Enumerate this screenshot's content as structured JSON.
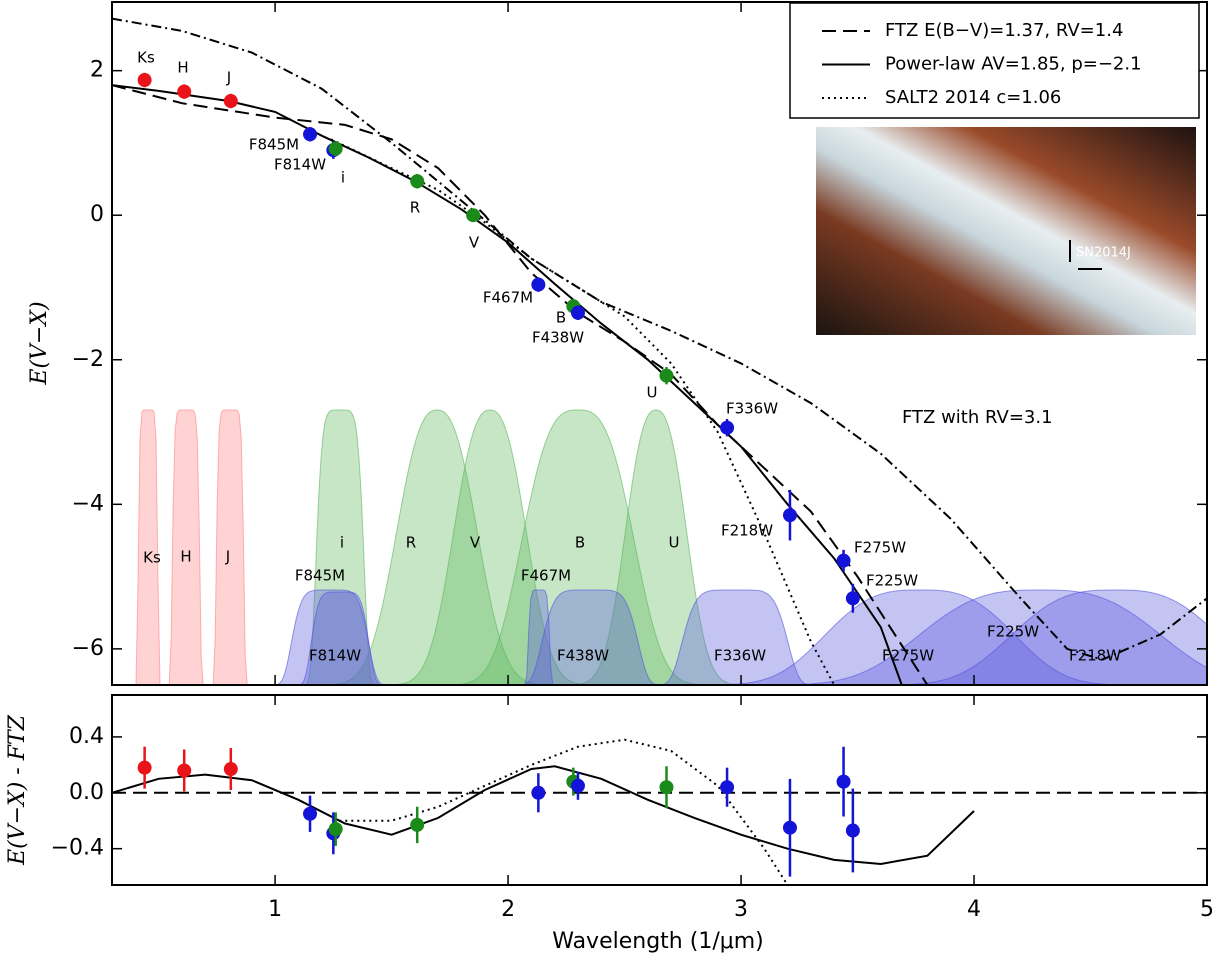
{
  "chart_data": [
    {
      "type": "scatter",
      "ylabel": "E(V−X)",
      "xlim": [
        0.3,
        5
      ],
      "xticks": [
        1,
        2,
        3,
        4,
        5
      ],
      "ylim": [
        -6.5,
        2.95
      ],
      "yticks": [
        {
          "value": -6,
          "label": "−6"
        },
        {
          "value": -4,
          "label": "−4"
        },
        {
          "value": -2,
          "label": "−2"
        },
        0,
        2
      ],
      "legend": "upper right",
      "points": {
        "labels": [
          "Ks",
          "H",
          "J",
          "F845M",
          "F814W",
          "i",
          "R",
          "V",
          "F467M",
          "B",
          "F438W",
          "U",
          "F336W",
          "F218W",
          "F275W",
          "F225W"
        ],
        "x": [
          0.44,
          0.61,
          0.81,
          1.15,
          1.25,
          1.26,
          1.61,
          1.85,
          2.13,
          2.28,
          2.3,
          2.68,
          2.94,
          3.21,
          3.44,
          3.48
        ],
        "values": [
          1.87,
          1.71,
          1.58,
          1.12,
          0.9,
          0.92,
          0.47,
          0,
          -0.96,
          -1.26,
          -1.35,
          -2.22,
          -2.94,
          -4.15,
          -4.78,
          -5.3
        ],
        "errors": [
          0.1,
          0.1,
          0.1,
          0.1,
          0.12,
          0.1,
          0.1,
          0.05,
          0.1,
          0.1,
          0.1,
          0.12,
          0.12,
          0.35,
          0.15,
          0.2
        ],
        "colors": [
          "#e8141a",
          "#e8141a",
          "#e8141a",
          "#1414d8",
          "#1414d8",
          "#1a8a1a",
          "#1a8a1a",
          "#1a8a1a",
          "#1414d8",
          "#1a8a1a",
          "#1414d8",
          "#1a8a1a",
          "#1414d8",
          "#1414d8",
          "#1414d8",
          "#1414d8"
        ]
      },
      "series": [
        {
          "name": "FTZ E(B−V)=1.37, RV=1.4",
          "color": "#000000",
          "linestyle": "dashed",
          "x": [
            0.3,
            0.6,
            1.0,
            1.3,
            1.5,
            1.7,
            1.9,
            2.1,
            2.3,
            2.5,
            2.7,
            2.9,
            3.1,
            3.3,
            3.5,
            3.7,
            3.8
          ],
          "values": [
            1.8,
            1.55,
            1.35,
            1.25,
            1.05,
            0.65,
            0.0,
            -0.8,
            -1.35,
            -1.75,
            -2.2,
            -2.9,
            -3.5,
            -4.1,
            -5.0,
            -6.0,
            -6.5
          ]
        },
        {
          "name": "Power-law AV=1.85, p=−2.1",
          "color": "#000000",
          "linestyle": "solid",
          "x": [
            0.3,
            0.5,
            0.8,
            1.0,
            1.2,
            1.4,
            1.6,
            1.8,
            2.0,
            2.2,
            2.4,
            2.6,
            2.8,
            3.0,
            3.2,
            3.4,
            3.6,
            3.69
          ],
          "values": [
            1.8,
            1.72,
            1.58,
            1.43,
            1.1,
            0.8,
            0.47,
            0.08,
            -0.38,
            -0.95,
            -1.5,
            -2.0,
            -2.6,
            -3.2,
            -4.0,
            -4.75,
            -5.7,
            -6.5
          ]
        },
        {
          "name": "SALT2 2014 c=1.06",
          "color": "#000000",
          "linestyle": "dotted",
          "x": [
            1.24,
            1.5,
            1.7,
            1.9,
            2.1,
            2.3,
            2.5,
            2.7,
            2.9,
            3.1,
            3.3,
            3.4
          ],
          "values": [
            1.05,
            0.65,
            0.35,
            -0.1,
            -0.6,
            -1.0,
            -1.4,
            -2.05,
            -3.0,
            -4.4,
            -5.9,
            -6.5
          ]
        }
      ],
      "annotation_curve": {
        "label": "FTZ with RV=3.1",
        "linestyle": "dashdot",
        "x": [
          0.3,
          0.6,
          0.9,
          1.2,
          1.5,
          1.8,
          2.1,
          2.4,
          2.7,
          3.0,
          3.3,
          3.6,
          3.9,
          4.2,
          4.4,
          4.55,
          4.8,
          5.0
        ],
        "values": [
          2.72,
          2.55,
          2.25,
          1.75,
          1.0,
          0.2,
          -0.6,
          -1.2,
          -1.6,
          -2.05,
          -2.6,
          -3.3,
          -4.2,
          -5.3,
          -6.0,
          -6.15,
          -5.8,
          -5.3
        ]
      },
      "filters": [
        "Ks",
        "H",
        "J",
        "i",
        "R",
        "V",
        "B",
        "U",
        "F845M",
        "F814W",
        "F467M",
        "F438W",
        "F336W",
        "F218W",
        "F275W",
        "F225W"
      ],
      "inset_label": "SN2014J"
    },
    {
      "type": "scatter",
      "ylabel": "E(V−X) - FTZ",
      "xlabel": "Wavelength (1/μm)",
      "xlim": [
        0.3,
        5
      ],
      "xticks": [
        1,
        2,
        3,
        4,
        5
      ],
      "ylim": [
        -0.66,
        0.7
      ],
      "yticks": [
        {
          "value": -0.4,
          "label": "−0.4"
        },
        {
          "value": 0,
          "label": "0.0"
        },
        0.4
      ],
      "points": {
        "x": [
          0.44,
          0.61,
          0.81,
          1.15,
          1.25,
          1.26,
          1.61,
          2.13,
          2.28,
          2.3,
          2.68,
          2.94,
          3.21,
          3.44,
          3.48
        ],
        "values": [
          0.18,
          0.16,
          0.17,
          -0.15,
          -0.29,
          -0.26,
          -0.23,
          0.0,
          0.08,
          0.05,
          0.04,
          0.04,
          -0.25,
          0.08,
          -0.27
        ],
        "errors": [
          0.15,
          0.15,
          0.15,
          0.13,
          0.15,
          0.12,
          0.13,
          0.14,
          0.1,
          0.1,
          0.15,
          0.14,
          0.35,
          0.25,
          0.3
        ],
        "colors": [
          "#e8141a",
          "#e8141a",
          "#e8141a",
          "#1414d8",
          "#1414d8",
          "#1a8a1a",
          "#1a8a1a",
          "#1414d8",
          "#1a8a1a",
          "#1414d8",
          "#1a8a1a",
          "#1414d8",
          "#1414d8",
          "#1414d8",
          "#1414d8"
        ]
      },
      "series": [
        {
          "color": "#000000",
          "linestyle": "dashed",
          "x": [
            0.3,
            5
          ],
          "values": [
            0,
            0
          ]
        },
        {
          "color": "#000000",
          "linestyle": "solid",
          "x": [
            0.3,
            0.5,
            0.7,
            0.9,
            1.1,
            1.3,
            1.5,
            1.7,
            1.9,
            2.1,
            2.2,
            2.4,
            2.6,
            2.8,
            3.0,
            3.2,
            3.4,
            3.6,
            3.8,
            4.0
          ],
          "values": [
            0.0,
            0.1,
            0.13,
            0.09,
            -0.05,
            -0.22,
            -0.3,
            -0.18,
            0.02,
            0.17,
            0.19,
            0.1,
            -0.05,
            -0.18,
            -0.3,
            -0.4,
            -0.48,
            -0.51,
            -0.45,
            -0.13
          ]
        },
        {
          "color": "#000000",
          "linestyle": "dotted",
          "x": [
            1.25,
            1.4,
            1.5,
            1.7,
            1.9,
            2.1,
            2.3,
            2.5,
            2.7,
            2.9,
            3.1,
            3.2
          ],
          "values": [
            -0.2,
            -0.2,
            -0.2,
            -0.1,
            0.05,
            0.2,
            0.33,
            0.38,
            0.3,
            0.05,
            -0.4,
            -0.66
          ]
        }
      ]
    }
  ]
}
